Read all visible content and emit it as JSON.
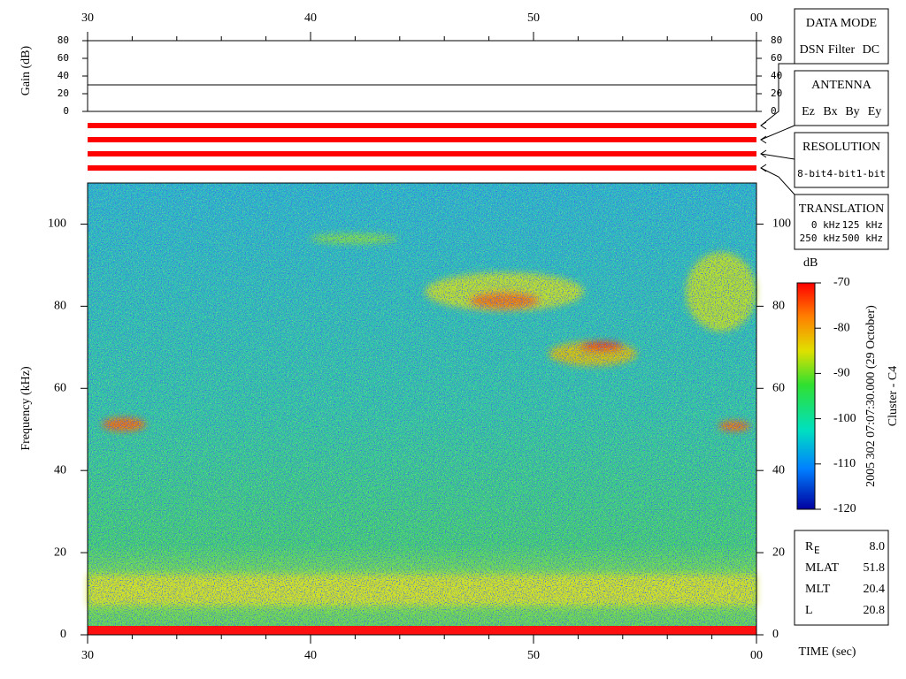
{
  "gain_panel": {
    "ylabel": "Gain (dB)",
    "ylim": [
      0,
      80
    ],
    "yticks": [
      0,
      20,
      40,
      60,
      80
    ],
    "gain_level": 30
  },
  "spectrogram": {
    "type": "heatmap",
    "xlabel": "TIME (sec)",
    "ylabel": "Frequency (kHz)",
    "xlim": [
      30,
      60
    ],
    "xticks": [
      30,
      40,
      50,
      {
        "value": 60,
        "label": "00"
      }
    ],
    "ylim": [
      0,
      110
    ],
    "yticks": [
      0,
      20,
      40,
      60,
      80,
      100
    ]
  },
  "colorbar": {
    "label": "dB",
    "lim": [
      -120,
      -70
    ],
    "ticks": [
      -70,
      -80,
      -90,
      -100,
      -110,
      -120
    ]
  },
  "caption": {
    "line1": "2005 302 07:07:30.000 (29 October)",
    "line2": "Cluster - C4"
  },
  "data_mode": {
    "title": "DATA MODE",
    "options": [
      {
        "text": "DSN",
        "color": "#ff0000"
      },
      {
        "text": "Filter",
        "color": "#00cc00"
      },
      {
        "text": "DC",
        "color": "#0000ff"
      }
    ]
  },
  "antenna": {
    "title": "ANTENNA",
    "options": [
      {
        "text": "Ez",
        "color": "#ff0000"
      },
      {
        "text": "Bx",
        "color": "#00cc00"
      },
      {
        "text": "By",
        "color": "#0000ff"
      },
      {
        "text": "Ey",
        "color": "#000000"
      }
    ]
  },
  "resolution": {
    "title": "RESOLUTION",
    "options": [
      {
        "text": "8-bit",
        "color": "#ff0000"
      },
      {
        "text": "4-bit",
        "color": "#00cc00"
      },
      {
        "text": "1-bit",
        "color": "#0000ff"
      }
    ]
  },
  "translation": {
    "title": "TRANSLATION",
    "options": [
      {
        "text": "0 kHz",
        "color": "#ff0000"
      },
      {
        "text": "125 kHz",
        "color": "#00cc00"
      },
      {
        "text": "250 kHz",
        "color": "#0000ff"
      },
      {
        "text": "500 kHz",
        "color": "#000000"
      }
    ]
  },
  "ephemeris": [
    {
      "label": "R",
      "sub": "E",
      "value": "8.0"
    },
    {
      "label": "MLAT",
      "value": "51.8"
    },
    {
      "label": "MLT",
      "value": "20.4"
    },
    {
      "label": "L",
      "value": "20.8"
    }
  ]
}
